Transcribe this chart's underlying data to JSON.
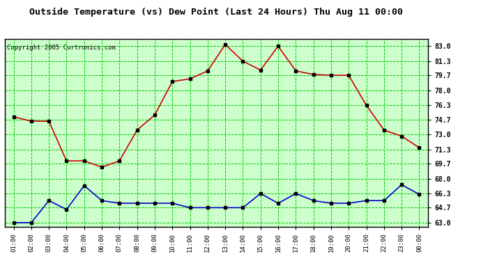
{
  "title": "Outside Temperature (vs) Dew Point (Last 24 Hours) Thu Aug 11 00:00",
  "copyright": "Copyright 2005 Curtronics.com",
  "x_labels": [
    "01:00",
    "02:00",
    "03:00",
    "04:00",
    "05:00",
    "06:00",
    "07:00",
    "08:00",
    "09:00",
    "10:00",
    "11:00",
    "12:00",
    "13:00",
    "14:00",
    "15:00",
    "16:00",
    "17:00",
    "18:00",
    "19:00",
    "20:00",
    "21:00",
    "22:00",
    "23:00",
    "00:00"
  ],
  "temp_values": [
    75.0,
    74.5,
    74.5,
    70.0,
    70.0,
    69.3,
    70.0,
    73.5,
    75.2,
    79.0,
    79.3,
    80.2,
    83.2,
    81.3,
    80.3,
    83.0,
    80.2,
    79.8,
    79.7,
    79.7,
    76.3,
    73.5,
    72.8,
    71.5
  ],
  "dew_values": [
    63.0,
    63.0,
    65.5,
    64.5,
    67.2,
    65.5,
    65.2,
    65.2,
    65.2,
    65.2,
    64.7,
    64.7,
    64.7,
    64.7,
    66.3,
    65.2,
    66.3,
    65.5,
    65.2,
    65.2,
    65.5,
    65.5,
    67.3,
    66.2
  ],
  "temp_color": "#cc0000",
  "dew_color": "#0000cc",
  "bg_color": "#ffffff",
  "plot_bg": "#ccffcc",
  "grid_color": "#00cc00",
  "border_color": "#000000",
  "title_color": "#000000",
  "y_ticks": [
    63.0,
    64.7,
    66.3,
    68.0,
    69.7,
    71.3,
    73.0,
    74.7,
    76.3,
    78.0,
    79.7,
    81.3,
    83.0
  ],
  "ylim": [
    62.5,
    83.8
  ],
  "marker": "s",
  "marker_size": 2.5,
  "linewidth": 1.2
}
